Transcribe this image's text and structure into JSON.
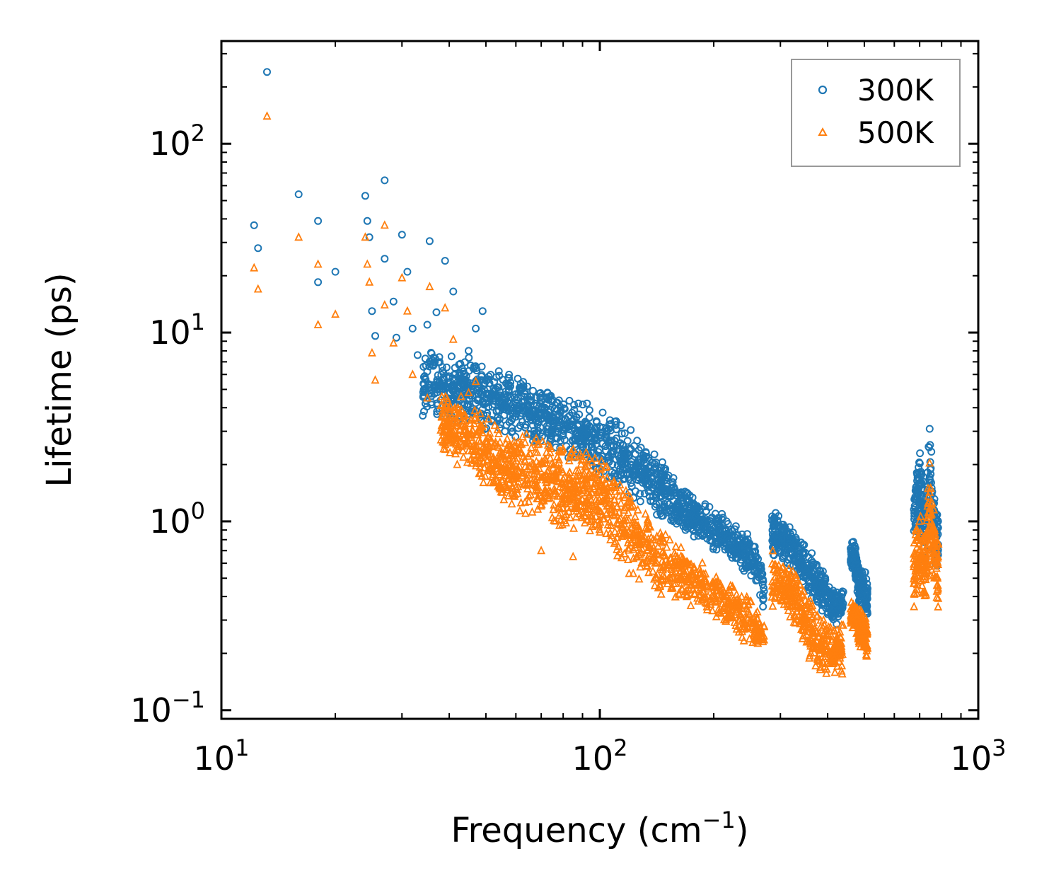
{
  "chart_data": {
    "type": "scatter",
    "title": "",
    "xlabel": "Frequency (cm",
    "xlabel_sup": "−1",
    "xlabel_close": ")",
    "ylabel": "Lifetime (ps)",
    "xscale": "log",
    "yscale": "log",
    "xlim": [
      10,
      1000
    ],
    "ylim": [
      0.09,
      350
    ],
    "x_ticks": [
      {
        "value": 10,
        "base": "10",
        "exp": "1"
      },
      {
        "value": 100,
        "base": "10",
        "exp": "2"
      },
      {
        "value": 1000,
        "base": "10",
        "exp": "3"
      }
    ],
    "y_ticks": [
      {
        "value": 0.1,
        "base": "10",
        "exp": "−1"
      },
      {
        "value": 1,
        "base": "10",
        "exp": "0"
      },
      {
        "value": 10,
        "base": "10",
        "exp": "1"
      },
      {
        "value": 100,
        "base": "10",
        "exp": "2"
      }
    ],
    "legend_position": "top-right",
    "series": [
      {
        "name": "300K",
        "marker": "circle",
        "color": "#1f77b4",
        "highlight_points": [
          [
            13.2,
            240
          ],
          [
            12.2,
            37
          ],
          [
            12.5,
            28
          ],
          [
            16,
            54
          ],
          [
            18,
            39
          ],
          [
            18,
            18.5
          ],
          [
            20,
            21
          ],
          [
            24,
            53
          ],
          [
            24.3,
            39
          ],
          [
            24.6,
            32
          ],
          [
            25,
            13
          ],
          [
            25.5,
            9.6
          ],
          [
            27,
            64
          ],
          [
            27,
            24.6
          ],
          [
            28.5,
            14.6
          ],
          [
            30,
            33
          ],
          [
            31,
            21
          ],
          [
            32,
            10.5
          ],
          [
            35,
            11
          ],
          [
            35.5,
            30.5
          ],
          [
            39,
            24
          ],
          [
            41,
            16.5
          ],
          [
            29,
            9.4
          ],
          [
            33,
            7.6
          ],
          [
            37,
            12.8
          ],
          [
            45,
            8
          ],
          [
            47,
            10.5
          ],
          [
            49,
            13
          ]
        ],
        "bands": [
          [
            [
              34,
              3.5,
              9
            ],
            [
              45,
              3.2,
              7.5
            ],
            [
              55,
              2.8,
              6.5
            ],
            [
              65,
              2.6,
              5.8
            ],
            [
              75,
              2.3,
              5.2
            ],
            [
              85,
              2.0,
              4.6
            ],
            [
              95,
              1.8,
              4.2
            ],
            [
              105,
              1.6,
              3.9
            ],
            [
              118,
              1.3,
              3.3
            ],
            [
              130,
              1.2,
              2.8
            ],
            [
              140,
              1.05,
              2.4
            ],
            [
              155,
              0.95,
              1.8
            ],
            [
              170,
              0.85,
              1.5
            ],
            [
              185,
              0.78,
              1.3
            ],
            [
              200,
              0.7,
              1.2
            ],
            [
              215,
              0.65,
              1.1
            ],
            [
              230,
              0.58,
              0.95
            ],
            [
              245,
              0.5,
              0.9
            ],
            [
              260,
              0.42,
              0.75
            ],
            [
              272,
              0.33,
              0.55
            ]
          ],
          [
            [
              285,
              0.62,
              1.3
            ],
            [
              300,
              0.6,
              1.1
            ],
            [
              320,
              0.55,
              0.95
            ],
            [
              340,
              0.45,
              0.85
            ],
            [
              360,
              0.38,
              0.72
            ],
            [
              380,
              0.32,
              0.62
            ],
            [
              400,
              0.3,
              0.52
            ],
            [
              420,
              0.28,
              0.46
            ],
            [
              440,
              0.28,
              0.45
            ]
          ],
          [
            [
              460,
              0.52,
              0.78
            ],
            [
              470,
              0.55,
              0.8
            ],
            [
              485,
              0.35,
              0.55
            ],
            [
              500,
              0.32,
              0.6
            ],
            [
              510,
              0.3,
              0.48
            ]
          ],
          [
            [
              675,
              0.8,
              1.5
            ],
            [
              700,
              0.8,
              2.6
            ],
            [
              725,
              0.5,
              1.8
            ],
            [
              745,
              1.0,
              3.3
            ],
            [
              765,
              0.6,
              1.5
            ],
            [
              785,
              0.5,
              1.1
            ]
          ]
        ]
      },
      {
        "name": "500K",
        "marker": "triangle",
        "color": "#ff7f0e",
        "highlight_points": [
          [
            13.2,
            140
          ],
          [
            12.2,
            22
          ],
          [
            12.5,
            17
          ],
          [
            16,
            32
          ],
          [
            18,
            23
          ],
          [
            18,
            11
          ],
          [
            20,
            12.5
          ],
          [
            24,
            32
          ],
          [
            24.3,
            23
          ],
          [
            24.6,
            18.5
          ],
          [
            25,
            7.8
          ],
          [
            25.5,
            5.6
          ],
          [
            27,
            37
          ],
          [
            27,
            14
          ],
          [
            28.5,
            8.8
          ],
          [
            30,
            19.5
          ],
          [
            31,
            13
          ],
          [
            32,
            6
          ],
          [
            35,
            4.5
          ],
          [
            35.5,
            17.5
          ],
          [
            39,
            13.5
          ],
          [
            41,
            9.2
          ],
          [
            38,
            4.1
          ],
          [
            42,
            2.0
          ],
          [
            45,
            4.8
          ],
          [
            47,
            5.5
          ],
          [
            70,
            0.7
          ],
          [
            85,
            0.65
          ]
        ],
        "bands": [
          [
            [
              38,
              2.2,
              5
            ],
            [
              45,
              1.8,
              4.5
            ],
            [
              55,
              1.2,
              3.2
            ],
            [
              65,
              1.0,
              3.0
            ],
            [
              75,
              0.9,
              2.7
            ],
            [
              85,
              0.85,
              2.6
            ],
            [
              95,
              0.8,
              2.5
            ],
            [
              105,
              0.7,
              2.2
            ],
            [
              115,
              0.55,
              1.8
            ],
            [
              125,
              0.48,
              1.4
            ],
            [
              140,
              0.42,
              1.0
            ],
            [
              155,
              0.38,
              0.85
            ],
            [
              170,
              0.34,
              0.72
            ],
            [
              185,
              0.32,
              0.62
            ],
            [
              200,
              0.3,
              0.55
            ],
            [
              215,
              0.28,
              0.5
            ],
            [
              230,
              0.25,
              0.46
            ],
            [
              245,
              0.22,
              0.42
            ],
            [
              260,
              0.2,
              0.36
            ],
            [
              272,
              0.19,
              0.3
            ]
          ],
          [
            [
              285,
              0.3,
              0.75
            ],
            [
              300,
              0.32,
              0.68
            ],
            [
              320,
              0.3,
              0.6
            ],
            [
              340,
              0.25,
              0.5
            ],
            [
              360,
              0.17,
              0.42
            ],
            [
              380,
              0.15,
              0.35
            ],
            [
              400,
              0.15,
              0.32
            ],
            [
              420,
              0.14,
              0.3
            ],
            [
              440,
              0.15,
              0.3
            ]
          ],
          [
            [
              460,
              0.25,
              0.38
            ],
            [
              470,
              0.27,
              0.4
            ],
            [
              485,
              0.22,
              0.36
            ],
            [
              500,
              0.19,
              0.35
            ],
            [
              510,
              0.18,
              0.3
            ]
          ],
          [
            [
              675,
              0.32,
              0.85
            ],
            [
              700,
              0.4,
              1.2
            ],
            [
              725,
              0.35,
              1.0
            ],
            [
              745,
              0.55,
              2.2
            ],
            [
              765,
              0.38,
              1.2
            ],
            [
              785,
              0.33,
              0.8
            ]
          ]
        ]
      }
    ]
  }
}
